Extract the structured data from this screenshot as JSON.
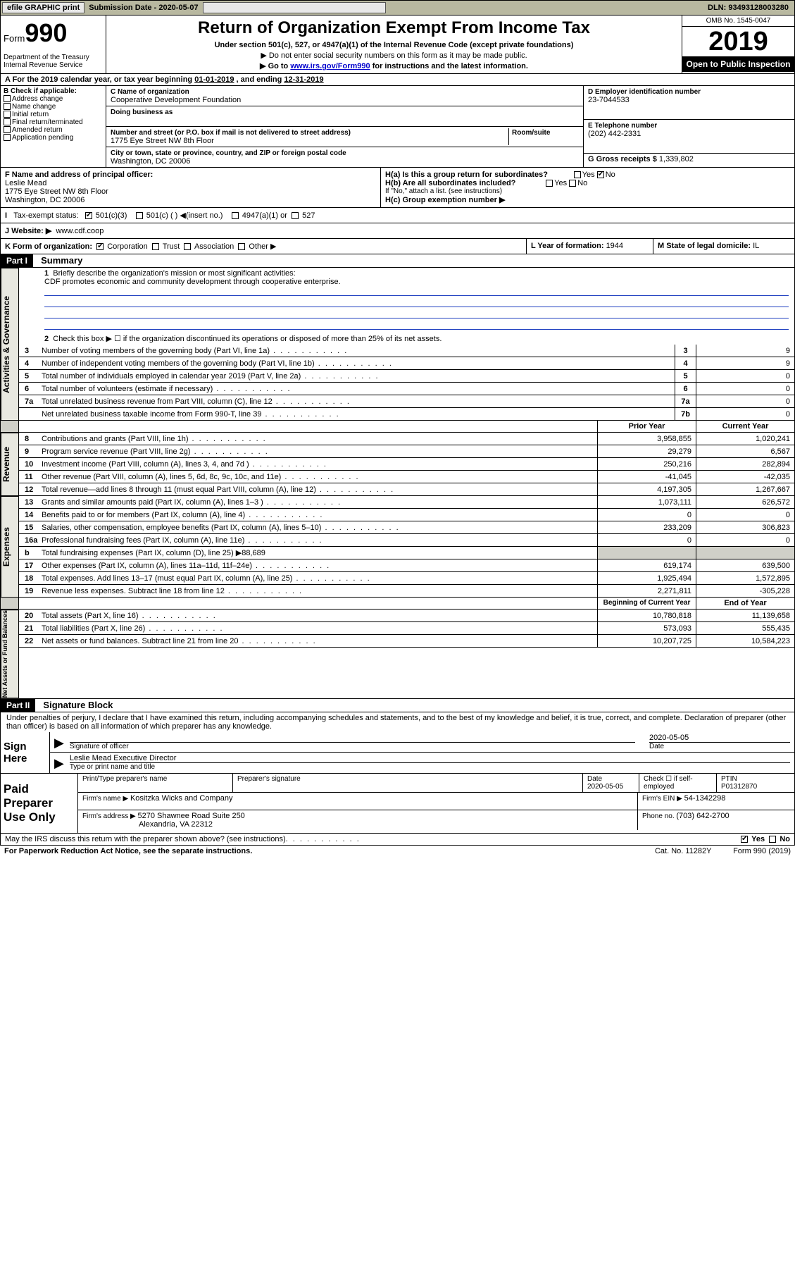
{
  "topbar": {
    "efile": "efile GRAPHIC print",
    "subdate_lbl": "Submission Date - ",
    "subdate": "2020-05-07",
    "dln": "DLN: 93493128003280"
  },
  "header": {
    "form": "Form",
    "num": "990",
    "dept": "Department of the Treasury\nInternal Revenue Service",
    "title": "Return of Organization Exempt From Income Tax",
    "sub": "Under section 501(c), 527, or 4947(a)(1) of the Internal Revenue Code (except private foundations)",
    "note1": "▶ Do not enter social security numbers on this form as it may be made public.",
    "note2_pre": "▶ Go to ",
    "note2_link": "www.irs.gov/Form990",
    "note2_post": " for instructions and the latest information.",
    "omb": "OMB No. 1545-0047",
    "year": "2019",
    "inspect": "Open to Public Inspection"
  },
  "period": {
    "a": "A  For the 2019 calendar year, or tax year beginning ",
    "begin": "01-01-2019",
    "mid": "  , and ending ",
    "end": "12-31-2019"
  },
  "b": {
    "lbl": "B Check if applicable:",
    "opts": [
      "Address change",
      "Name change",
      "Initial return",
      "Final return/terminated",
      "Amended return",
      "Application pending"
    ]
  },
  "c": {
    "name_lbl": "C Name of organization",
    "name": "Cooperative Development Foundation",
    "dba_lbl": "Doing business as",
    "addr_lbl": "Number and street (or P.O. box if mail is not delivered to street address)",
    "room_lbl": "Room/suite",
    "addr": "1775 Eye Street NW 8th Floor",
    "city_lbl": "City or town, state or province, country, and ZIP or foreign postal code",
    "city": "Washington, DC  20006"
  },
  "d": {
    "lbl": "D Employer identification number",
    "val": "23-7044533"
  },
  "e": {
    "lbl": "E Telephone number",
    "val": "(202) 442-2331"
  },
  "g": {
    "lbl": "G Gross receipts $ ",
    "val": "1,339,802"
  },
  "f": {
    "lbl": "F  Name and address of principal officer:",
    "name": "Leslie Mead",
    "addr1": "1775 Eye Street NW 8th Floor",
    "addr2": "Washington, DC  20006"
  },
  "h": {
    "a_lbl": "H(a)  Is this a group return for subordinates?",
    "b_lbl": "H(b)  Are all subordinates included?",
    "b_note": "If \"No,\" attach a list. (see instructions)",
    "c_lbl": "H(c)  Group exemption number ▶"
  },
  "tax": {
    "lbl": "Tax-exempt status:",
    "o1": "501(c)(3)",
    "o2": "501(c) (   ) ◀(insert no.)",
    "o3": "4947(a)(1) or",
    "o4": "527"
  },
  "j": {
    "lbl": "J  Website: ▶",
    "val": "www.cdf.coop"
  },
  "k": {
    "lbl": "K Form of organization:",
    "opts": [
      "Corporation",
      "Trust",
      "Association",
      "Other ▶"
    ]
  },
  "l": {
    "lbl": "L Year of formation: ",
    "val": "1944"
  },
  "m": {
    "lbl": "M State of legal domicile: ",
    "val": "IL"
  },
  "part1": {
    "hdr": "Part I",
    "title": "Summary"
  },
  "summary": {
    "q1": "Briefly describe the organization's mission or most significant activities:",
    "mission": "CDF promotes economic and community development through cooperative enterprise.",
    "q2": "Check this box ▶ ☐  if the organization discontinued its operations or disposed of more than 25% of its net assets.",
    "lines": [
      {
        "n": "3",
        "t": "Number of voting members of the governing body (Part VI, line 1a)",
        "c": "3",
        "v": "9"
      },
      {
        "n": "4",
        "t": "Number of independent voting members of the governing body (Part VI, line 1b)",
        "c": "4",
        "v": "9"
      },
      {
        "n": "5",
        "t": "Total number of individuals employed in calendar year 2019 (Part V, line 2a)",
        "c": "5",
        "v": "0"
      },
      {
        "n": "6",
        "t": "Total number of volunteers (estimate if necessary)",
        "c": "6",
        "v": "0"
      },
      {
        "n": "7a",
        "t": "Total unrelated business revenue from Part VIII, column (C), line 12",
        "c": "7a",
        "v": "0"
      },
      {
        "n": "",
        "t": "Net unrelated business taxable income from Form 990-T, line 39",
        "c": "7b",
        "v": "0"
      }
    ],
    "col_prior": "Prior Year",
    "col_curr": "Current Year"
  },
  "revenue": [
    {
      "n": "8",
      "t": "Contributions and grants (Part VIII, line 1h)",
      "p": "3,958,855",
      "c": "1,020,241"
    },
    {
      "n": "9",
      "t": "Program service revenue (Part VIII, line 2g)",
      "p": "29,279",
      "c": "6,567"
    },
    {
      "n": "10",
      "t": "Investment income (Part VIII, column (A), lines 3, 4, and 7d )",
      "p": "250,216",
      "c": "282,894"
    },
    {
      "n": "11",
      "t": "Other revenue (Part VIII, column (A), lines 5, 6d, 8c, 9c, 10c, and 11e)",
      "p": "-41,045",
      "c": "-42,035"
    },
    {
      "n": "12",
      "t": "Total revenue—add lines 8 through 11 (must equal Part VIII, column (A), line 12)",
      "p": "4,197,305",
      "c": "1,267,667"
    }
  ],
  "expenses": [
    {
      "n": "13",
      "t": "Grants and similar amounts paid (Part IX, column (A), lines 1–3 )",
      "p": "1,073,111",
      "c": "626,572"
    },
    {
      "n": "14",
      "t": "Benefits paid to or for members (Part IX, column (A), line 4)",
      "p": "0",
      "c": "0"
    },
    {
      "n": "15",
      "t": "Salaries, other compensation, employee benefits (Part IX, column (A), lines 5–10)",
      "p": "233,209",
      "c": "306,823"
    },
    {
      "n": "16a",
      "t": "Professional fundraising fees (Part IX, column (A), line 11e)",
      "p": "0",
      "c": "0"
    },
    {
      "n": "b",
      "t": "Total fundraising expenses (Part IX, column (D), line 25) ▶88,689",
      "p": "",
      "c": "",
      "grey": true
    },
    {
      "n": "17",
      "t": "Other expenses (Part IX, column (A), lines 11a–11d, 11f–24e)",
      "p": "619,174",
      "c": "639,500"
    },
    {
      "n": "18",
      "t": "Total expenses. Add lines 13–17 (must equal Part IX, column (A), line 25)",
      "p": "1,925,494",
      "c": "1,572,895"
    },
    {
      "n": "19",
      "t": "Revenue less expenses. Subtract line 18 from line 12",
      "p": "2,271,811",
      "c": "-305,228"
    }
  ],
  "netassets": {
    "col_begin": "Beginning of Current Year",
    "col_end": "End of Year",
    "lines": [
      {
        "n": "20",
        "t": "Total assets (Part X, line 16)",
        "p": "10,780,818",
        "c": "11,139,658"
      },
      {
        "n": "21",
        "t": "Total liabilities (Part X, line 26)",
        "p": "573,093",
        "c": "555,435"
      },
      {
        "n": "22",
        "t": "Net assets or fund balances. Subtract line 21 from line 20",
        "p": "10,207,725",
        "c": "10,584,223"
      }
    ]
  },
  "part2": {
    "hdr": "Part II",
    "title": "Signature Block"
  },
  "sig": {
    "decl": "Under penalties of perjury, I declare that I have examined this return, including accompanying schedules and statements, and to the best of my knowledge and belief, it is true, correct, and complete. Declaration of preparer (other than officer) is based on all information of which preparer has any knowledge.",
    "sign_here": "Sign Here",
    "sig_officer": "Signature of officer",
    "date": "2020-05-05",
    "date_lbl": "Date",
    "name": "Leslie Mead  Executive Director",
    "name_lbl": "Type or print name and title"
  },
  "prep": {
    "lbl": "Paid Preparer Use Only",
    "h1": "Print/Type preparer's name",
    "h2": "Preparer's signature",
    "h3": "Date",
    "h3v": "2020-05-05",
    "h4": "Check ☐ if self-employed",
    "h5": "PTIN",
    "h5v": "P01312870",
    "firm_lbl": "Firm's name    ▶ ",
    "firm": "Kositzka Wicks and Company",
    "ein_lbl": "Firm's EIN ▶ ",
    "ein": "54-1342298",
    "addr_lbl": "Firm's address ▶ ",
    "addr1": "5270 Shawnee Road Suite 250",
    "addr2": "Alexandria, VA  22312",
    "phone_lbl": "Phone no. ",
    "phone": "(703) 642-2700"
  },
  "discuss": {
    "q": "May the IRS discuss this return with the preparer shown above? (see instructions)",
    "yes": "Yes",
    "no": "No"
  },
  "footer": {
    "paperwork": "For Paperwork Reduction Act Notice, see the separate instructions.",
    "cat": "Cat. No. 11282Y",
    "form": "Form 990 (2019)"
  },
  "labels": {
    "activities": "Activities & Governance",
    "revenue": "Revenue",
    "expenses": "Expenses",
    "netassets": "Net Assets or Fund Balances"
  }
}
